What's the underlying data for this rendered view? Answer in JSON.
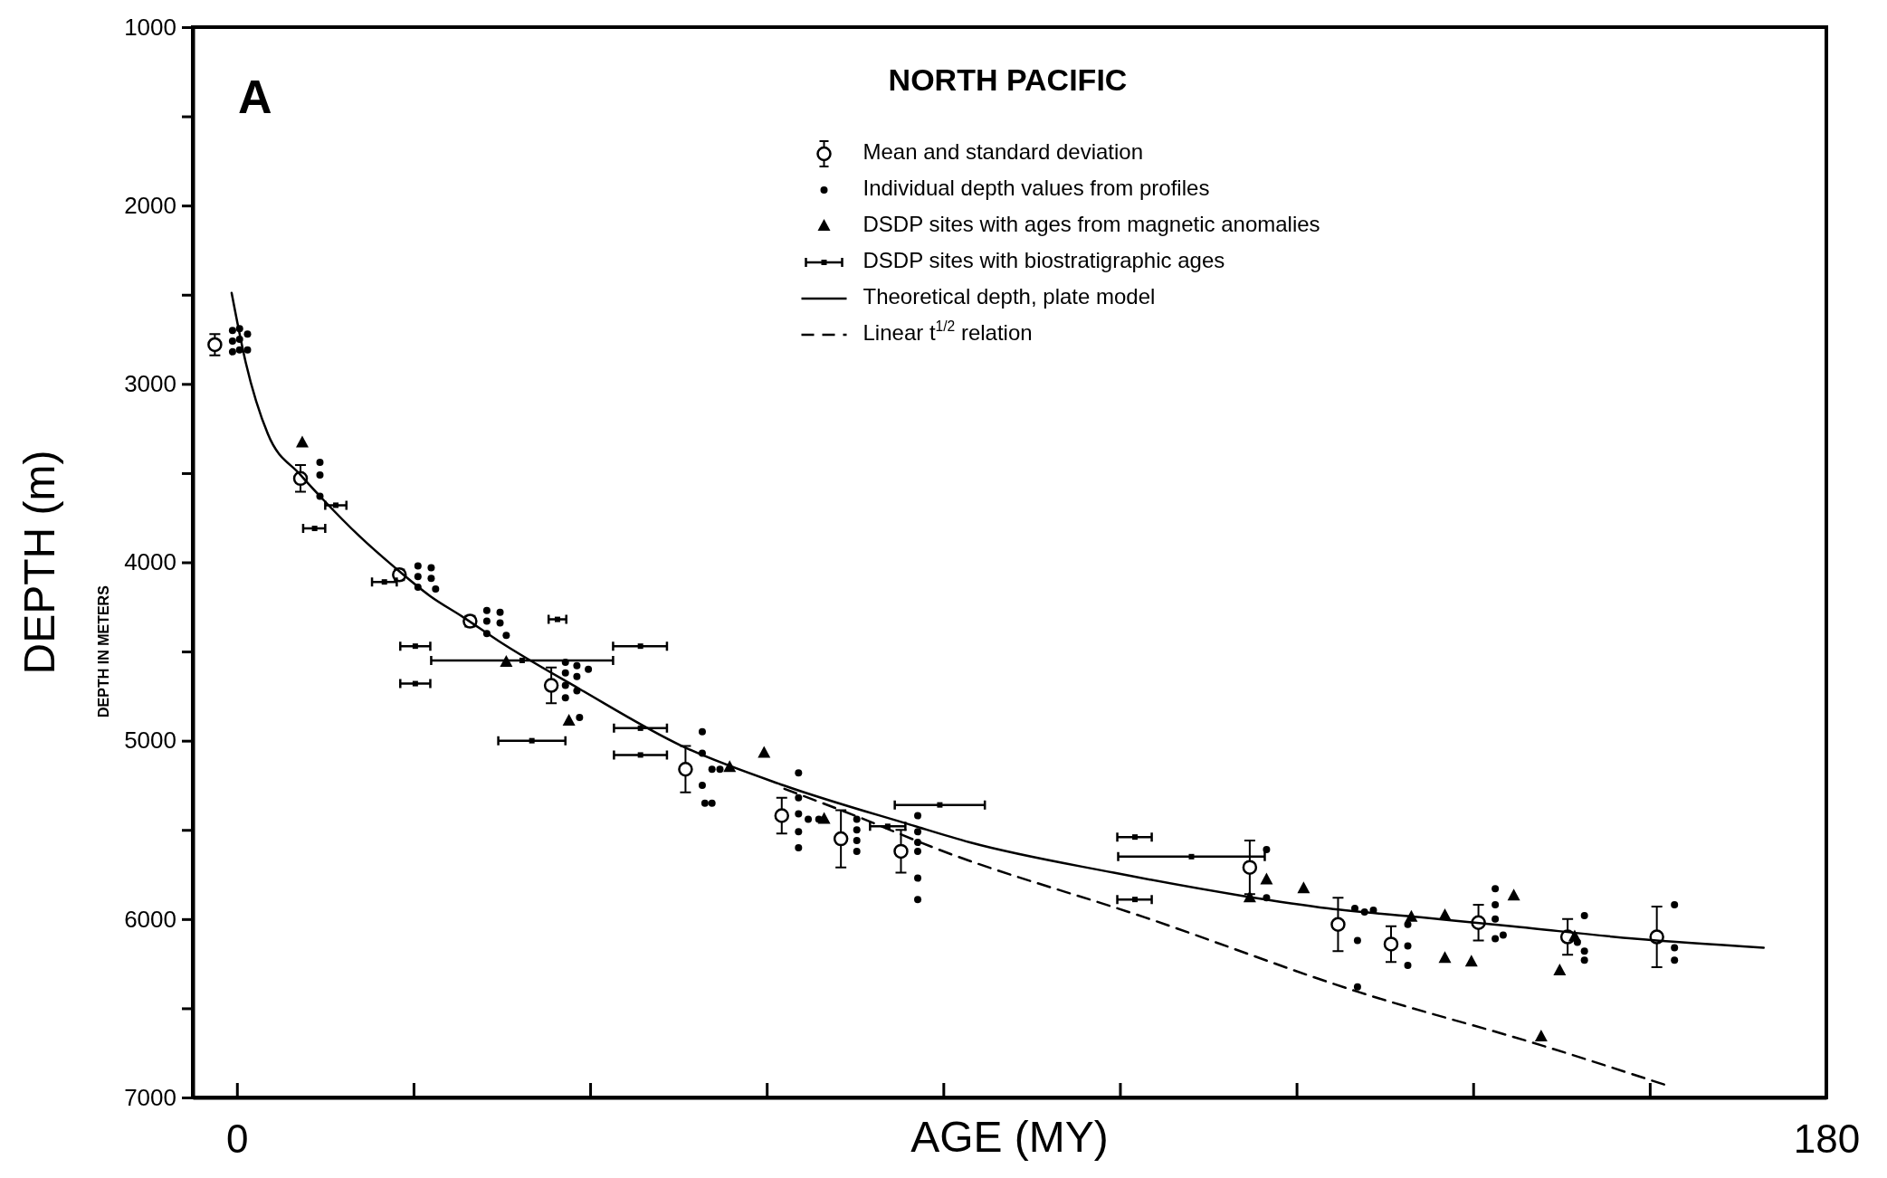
{
  "chart_data": {
    "type": "scatter",
    "title": "NORTH PACIFIC",
    "xlabel": "AGE (MY)",
    "ylabel": "DEPTH (m)",
    "annotations": [
      "A",
      "DEPTH IN METERS"
    ],
    "xlim": [
      -5,
      180
    ],
    "ylim": [
      7000,
      1000
    ],
    "xticks": [
      0,
      {
        "value": 20,
        "label": null
      },
      {
        "value": 40,
        "label": null
      },
      {
        "value": 60,
        "label": null
      },
      {
        "value": 80,
        "label": null
      },
      {
        "value": 100,
        "label": null
      },
      {
        "value": 120,
        "label": null
      },
      {
        "value": 140,
        "label": null
      },
      {
        "value": 160,
        "label": null
      },
      180
    ],
    "yticks": [
      1000,
      {
        "value": 1500,
        "label": null
      },
      2000,
      {
        "value": 2500,
        "label": null
      },
      3000,
      {
        "value": 3500,
        "label": null
      },
      4000,
      {
        "value": 4500,
        "label": null
      },
      5000,
      {
        "value": 5500,
        "label": null
      },
      6000,
      {
        "value": 6500,
        "label": null
      },
      7000
    ],
    "legend": "top",
    "series": [
      {
        "name": "Mean and standard deviation",
        "marker": "circle",
        "color": "#000000",
        "x": [
          -2.5,
          7.2,
          18.4,
          26.4,
          35.6,
          50.8,
          61.7,
          68.4,
          75.2,
          114.7,
          124.7,
          130.7,
          140.6,
          150.7,
          160.8
        ],
        "values": [
          2780,
          3530,
          4070,
          4330,
          4690,
          5160,
          5420,
          5550,
          5620,
          5710,
          6030,
          6140,
          6020,
          6100,
          6100
        ],
        "errors": [
          60,
          75,
          30,
          30,
          100,
          130,
          100,
          160,
          120,
          150,
          150,
          100,
          100,
          100,
          170
        ]
      },
      {
        "name": "Individual depth values from profiles",
        "marker": "circle",
        "color": "#000000",
        "x": [
          -0.5,
          -0.5,
          -0.5,
          0.3,
          0.3,
          0.3,
          1.2,
          1.2,
          9.4,
          9.4,
          9.4,
          20.5,
          20.5,
          20.5,
          22,
          22,
          22.5,
          28.3,
          28.3,
          28.3,
          29.8,
          29.8,
          30.5,
          37.2,
          37.2,
          37.2,
          37.2,
          38.5,
          38.5,
          38.5,
          39.8,
          38.8,
          52.7,
          52.7,
          52.7,
          53,
          53.8,
          53.8,
          54.7,
          63.6,
          63.6,
          63.6,
          63.6,
          63.6,
          64.7,
          65.9,
          70.2,
          70.2,
          70.2,
          70.2,
          77.1,
          77.1,
          77.1,
          77.1,
          77.1,
          77.1,
          116.6,
          116.6,
          126.6,
          127.7,
          128.7,
          126.9,
          126.9,
          132.6,
          132.6,
          132.6,
          142.5,
          142.5,
          142.5,
          142.5,
          143.4,
          152.6,
          152.6,
          152.6,
          151.8,
          162.8,
          162.8,
          162.8
        ],
        "values": [
          2700,
          2760,
          2820,
          2690,
          2750,
          2810,
          2720,
          2810,
          3440,
          3510,
          3630,
          4020,
          4080,
          4140,
          4030,
          4090,
          4150,
          4270,
          4330,
          4400,
          4280,
          4340,
          4410,
          4560,
          4620,
          4690,
          4760,
          4580,
          4640,
          4720,
          4600,
          4870,
          4950,
          5070,
          5250,
          5350,
          5350,
          5160,
          5160,
          5180,
          5320,
          5410,
          5510,
          5600,
          5440,
          5440,
          5440,
          5500,
          5560,
          5620,
          5420,
          5510,
          5570,
          5620,
          5770,
          5890,
          5610,
          5880,
          5940,
          5960,
          5950,
          6120,
          6380,
          6030,
          6150,
          6260,
          5830,
          5920,
          6000,
          6110,
          6090,
          5980,
          6180,
          6230,
          6130,
          5920,
          6160,
          6230
        ]
      },
      {
        "name": "DSDP sites with ages from magnetic anomalies",
        "marker": "triangle",
        "color": "#000000",
        "x": [
          7.4,
          30.5,
          37.6,
          59.7,
          55.8,
          66.5,
          114.7,
          116.6,
          120.8,
          133,
          136.8,
          136.8,
          139.8,
          144.6,
          149.8,
          151.5,
          147.7
        ],
        "values": [
          3330,
          4560,
          4890,
          5070,
          5150,
          5440,
          5880,
          5780,
          5830,
          5990,
          5980,
          6220,
          6240,
          5870,
          6290,
          6100,
          6660
        ]
      },
      {
        "name": "DSDP sites with biostratigraphic ages",
        "marker": "square",
        "color": "#000000",
        "x": [
          11.2,
          8.8,
          16.7,
          36.3,
          20.2,
          32.3,
          20.2,
          33.4,
          45.7,
          45.7,
          45.7,
          73.7,
          79.6,
          101.7,
          108.1,
          101.7
        ],
        "values": [
          3680,
          3810,
          4110,
          4320,
          4470,
          4550,
          4680,
          5000,
          4470,
          4930,
          5080,
          5480,
          5360,
          5540,
          5650,
          5890
        ],
        "xerrors": [
          [
            10.0,
            12.4
          ],
          [
            7.5,
            10.0
          ],
          [
            15.3,
            18.1
          ],
          [
            35.3,
            37.3
          ],
          [
            18.5,
            21.9
          ],
          [
            22.0,
            42.6
          ],
          [
            18.5,
            21.9
          ],
          [
            29.6,
            37.2
          ],
          [
            42.6,
            48.7
          ],
          [
            42.7,
            48.7
          ],
          [
            42.7,
            48.7
          ],
          [
            71.7,
            75.7
          ],
          [
            74.5,
            84.7
          ],
          [
            99.7,
            103.6
          ],
          [
            99.8,
            116.4
          ],
          [
            99.7,
            103.6
          ]
        ]
      },
      {
        "name": "Theoretical depth, plate model",
        "type": "line",
        "line_style": "solid",
        "color": "#000000",
        "x": [
          -0.6,
          1,
          3.5,
          7.2,
          9.8,
          13.8,
          17.9,
          21.9,
          25.7,
          29.6,
          38.8,
          50.4,
          61.9,
          76.2,
          83,
          99.3,
          113.9,
          123.6,
          134,
          144.4,
          158.3,
          172.9
        ],
        "values": [
          2490,
          2880,
          3280,
          3510,
          3650,
          3850,
          4030,
          4190,
          4310,
          4440,
          4710,
          5030,
          5250,
          5470,
          5570,
          5740,
          5870,
          5940,
          5990,
          6040,
          6110,
          6160
        ]
      },
      {
        "name": "Linear t$^{1/2}$ relation",
        "type": "line",
        "line_style": "dashed",
        "color": "#000000",
        "x": [
          62,
          70,
          79.2,
          102.8,
          127.1,
          147.9,
          161.8
        ],
        "values": [
          5270,
          5420,
          5605,
          5990,
          6410,
          6710,
          6930
        ]
      }
    ]
  }
}
